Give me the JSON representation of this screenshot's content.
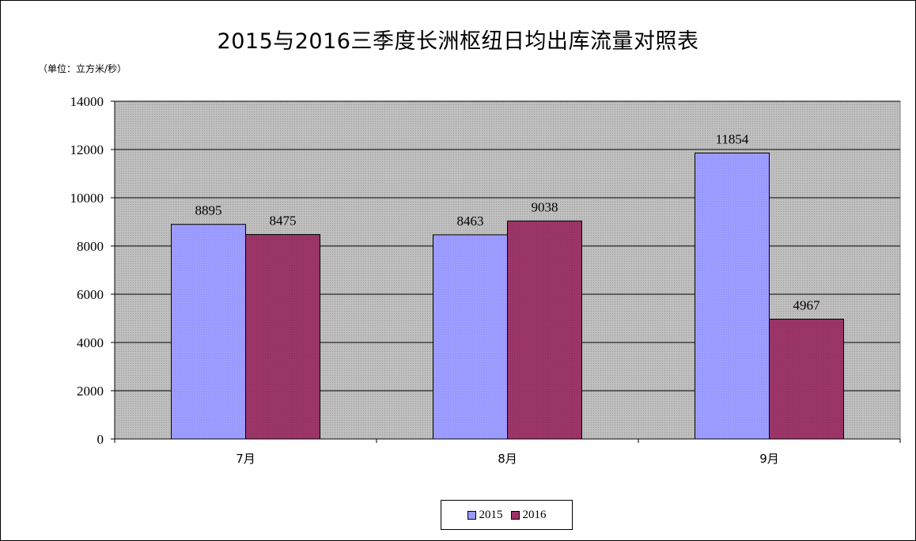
{
  "chart_data": {
    "type": "bar",
    "title": "2015与2016三季度长洲枢纽日均出库流量对照表",
    "unit_note": "（单位：立方米/秒）",
    "categories": [
      "7月",
      "8月",
      "9月"
    ],
    "series": [
      {
        "name": "2015",
        "values": [
          8895,
          8463,
          11854
        ],
        "color": "#9999ff"
      },
      {
        "name": "2016",
        "values": [
          8475,
          9038,
          4967
        ],
        "color": "#993366"
      }
    ],
    "yticks": [
      "0",
      "2000",
      "4000",
      "6000",
      "8000",
      "10000",
      "12000",
      "14000"
    ],
    "ylim": [
      0,
      14000
    ],
    "grid": true,
    "plot_background": "#c0c0c0",
    "legend_position": "bottom"
  }
}
